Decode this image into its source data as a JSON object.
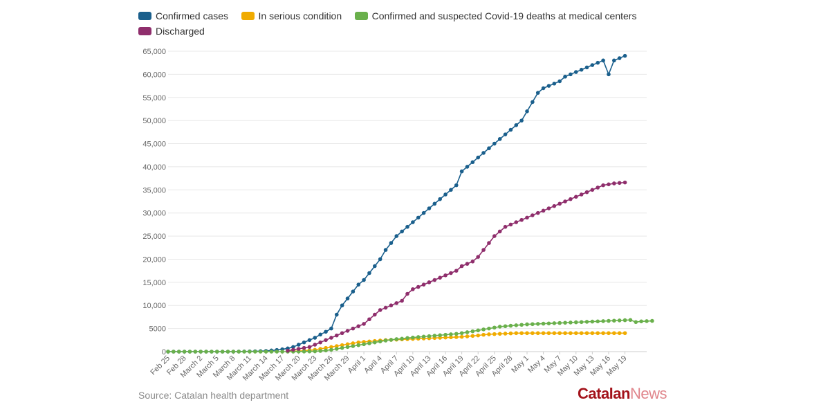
{
  "chart_data": {
    "type": "line",
    "title": "",
    "xlabel": "",
    "ylabel": "",
    "ylim": [
      0,
      65000
    ],
    "grid": true,
    "legend_position": "top-left",
    "y_ticks": [
      {
        "value": 0,
        "label": "0"
      },
      {
        "value": 5000,
        "label": "5000"
      },
      {
        "value": 10000,
        "label": "10,000"
      },
      {
        "value": 15000,
        "label": "15,000"
      },
      {
        "value": 20000,
        "label": "20,000"
      },
      {
        "value": 25000,
        "label": "25,000"
      },
      {
        "value": 30000,
        "label": "30,000"
      },
      {
        "value": 35000,
        "label": "35,000"
      },
      {
        "value": 40000,
        "label": "40,000"
      },
      {
        "value": 45000,
        "label": "45,000"
      },
      {
        "value": 50000,
        "label": "50,000"
      },
      {
        "value": 55000,
        "label": "55,000"
      },
      {
        "value": 60000,
        "label": "60,000"
      },
      {
        "value": 65000,
        "label": "65,000"
      }
    ],
    "x_ticks": [
      {
        "index": 0,
        "label": "Feb 25"
      },
      {
        "index": 3,
        "label": "Feb 28"
      },
      {
        "index": 6,
        "label": "March 2"
      },
      {
        "index": 9,
        "label": "March 5"
      },
      {
        "index": 12,
        "label": "March 8"
      },
      {
        "index": 15,
        "label": "March 11"
      },
      {
        "index": 18,
        "label": "March 14"
      },
      {
        "index": 21,
        "label": "March 17"
      },
      {
        "index": 24,
        "label": "March 20"
      },
      {
        "index": 27,
        "label": "March 23"
      },
      {
        "index": 30,
        "label": "March 26"
      },
      {
        "index": 33,
        "label": "March 29"
      },
      {
        "index": 36,
        "label": "April 1"
      },
      {
        "index": 39,
        "label": "April 4"
      },
      {
        "index": 42,
        "label": "April 7"
      },
      {
        "index": 45,
        "label": "April 10"
      },
      {
        "index": 48,
        "label": "April 13"
      },
      {
        "index": 51,
        "label": "April 16"
      },
      {
        "index": 54,
        "label": "April 19"
      },
      {
        "index": 57,
        "label": "April 22"
      },
      {
        "index": 60,
        "label": "April 25"
      },
      {
        "index": 63,
        "label": "April 28"
      },
      {
        "index": 66,
        "label": "May 1"
      },
      {
        "index": 69,
        "label": "May 4"
      },
      {
        "index": 72,
        "label": "May 7"
      },
      {
        "index": 75,
        "label": "May 10"
      },
      {
        "index": 78,
        "label": "May 13"
      },
      {
        "index": 81,
        "label": "May 16"
      },
      {
        "index": 84,
        "label": "May 19"
      }
    ],
    "series": [
      {
        "name": "Confirmed cases",
        "color": "#1a5f8c",
        "start_index": 0,
        "values": [
          0,
          0,
          0,
          0,
          0,
          0,
          0,
          0,
          0,
          0,
          0,
          0,
          0,
          15,
          30,
          50,
          75,
          100,
          150,
          250,
          350,
          500,
          700,
          1000,
          1500,
          2000,
          2500,
          3000,
          3700,
          4300,
          5000,
          8000,
          10000,
          11500,
          13000,
          14500,
          15500,
          17000,
          18500,
          20000,
          22000,
          23500,
          25000,
          26000,
          27000,
          28000,
          29000,
          30000,
          31000,
          32000,
          33000,
          34000,
          35000,
          36000,
          39000,
          40000,
          41000,
          42000,
          43000,
          44000,
          45000,
          46000,
          47000,
          48000,
          49000,
          50000,
          52000,
          54000,
          56000,
          57000,
          57500,
          58000,
          58500,
          59500,
          60000,
          60500,
          61000,
          61500,
          62000,
          62500,
          63000,
          60000,
          63000,
          63500,
          64000
        ]
      },
      {
        "name": "In serious condition",
        "color": "#f0ab00",
        "start_index": 22,
        "values": [
          50,
          80,
          120,
          200,
          300,
          400,
          600,
          800,
          1000,
          1200,
          1400,
          1600,
          1800,
          2000,
          2100,
          2200,
          2300,
          2400,
          2500,
          2550,
          2600,
          2650,
          2700,
          2750,
          2800,
          2850,
          2900,
          2950,
          3000,
          3050,
          3100,
          3150,
          3200,
          3300,
          3400,
          3500,
          3650,
          3750,
          3800,
          3850,
          3900,
          3950,
          4000,
          4000,
          4000,
          4000,
          4000,
          4000,
          4000,
          4000,
          4000,
          4000,
          4000,
          4000,
          4000,
          4000,
          4000,
          4000,
          4000,
          4000,
          4000,
          4000,
          4000
        ]
      },
      {
        "name": "Confirmed and suspected Covid-19 deaths at medical centers",
        "color": "#6ab04c",
        "start_index": 0,
        "values": [
          0,
          0,
          0,
          0,
          0,
          0,
          0,
          0,
          0,
          0,
          0,
          0,
          0,
          0,
          0,
          0,
          0,
          0,
          0,
          0,
          0,
          0,
          0,
          5,
          10,
          20,
          40,
          80,
          150,
          250,
          400,
          600,
          800,
          1000,
          1200,
          1400,
          1600,
          1800,
          2000,
          2200,
          2400,
          2550,
          2700,
          2800,
          2950,
          3050,
          3150,
          3250,
          3350,
          3450,
          3550,
          3650,
          3750,
          3850,
          4000,
          4200,
          4400,
          4600,
          4800,
          5000,
          5200,
          5400,
          5500,
          5600,
          5700,
          5800,
          5900,
          5950,
          6000,
          6050,
          6100,
          6150,
          6200,
          6250,
          6300,
          6350,
          6400,
          6450,
          6500,
          6550,
          6600,
          6650,
          6700,
          6750,
          6800,
          6850,
          6400,
          6550,
          6600,
          6650
        ]
      },
      {
        "name": "Discharged",
        "color": "#8f2e6c",
        "start_index": 22,
        "values": [
          200,
          400,
          600,
          800,
          1000,
          1500,
          2000,
          2500,
          3000,
          3500,
          4000,
          4500,
          5000,
          5500,
          6000,
          7000,
          8000,
          9000,
          9500,
          10000,
          10500,
          11000,
          12500,
          13500,
          14000,
          14500,
          15000,
          15500,
          16000,
          16500,
          17000,
          17500,
          18500,
          19000,
          19500,
          20500,
          22000,
          23500,
          25000,
          26000,
          27000,
          27500,
          28000,
          28500,
          29000,
          29500,
          30000,
          30500,
          31000,
          31500,
          32000,
          32500,
          33000,
          33500,
          34000,
          34500,
          35000,
          35500,
          36000,
          36200,
          36400,
          36500,
          36600
        ]
      }
    ]
  },
  "legend": {
    "confirmed_label": "Confirmed cases",
    "serious_label": "In serious condition",
    "deaths_label": "Confirmed and suspected Covid-19 deaths at medical centers",
    "discharged_label": "Discharged"
  },
  "source_text": "Source: Catalan health department",
  "brand": {
    "part1": "Catalan",
    "part2": "News"
  }
}
